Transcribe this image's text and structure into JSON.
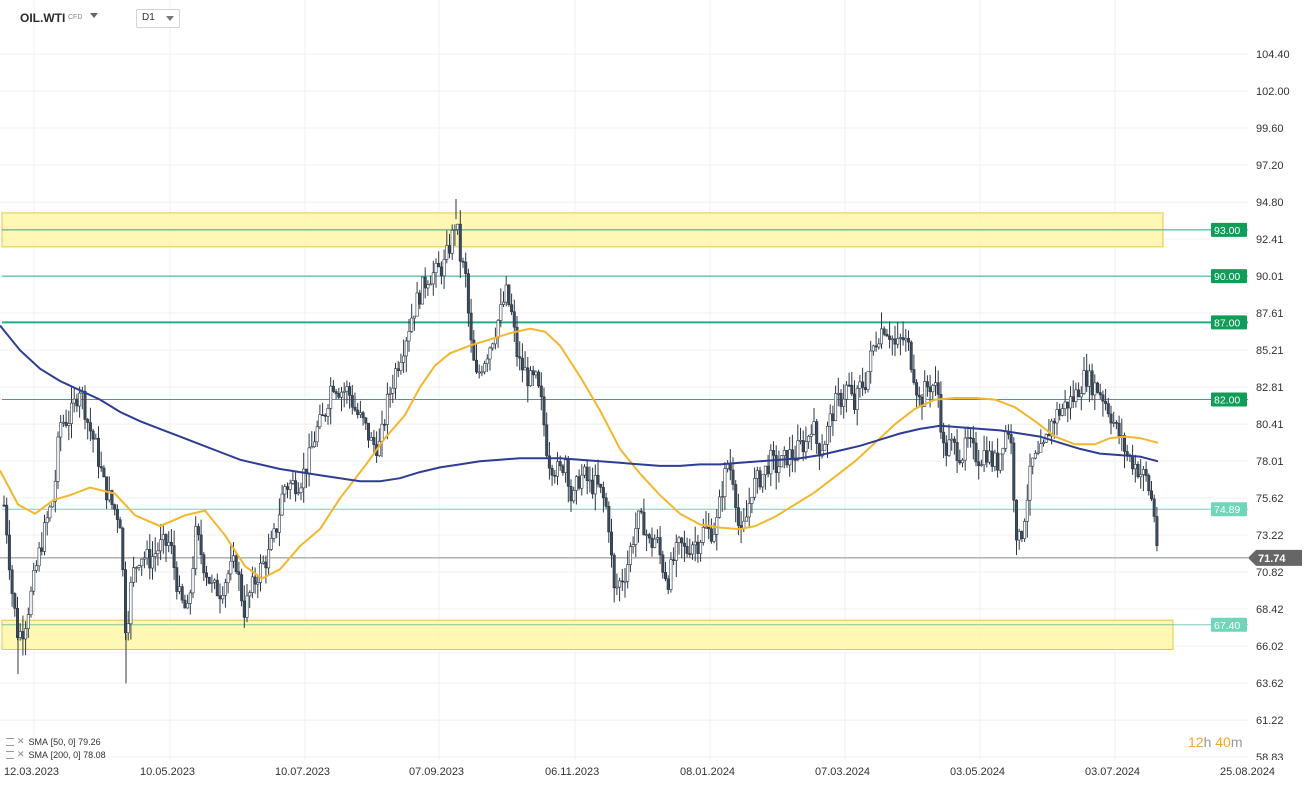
{
  "header": {
    "symbol": "OIL.WTI",
    "symbol_sub": "CFD",
    "timeframe": "D1"
  },
  "legend": [
    {
      "label": "SMA",
      "params": "[50, 0]",
      "value": "79.26"
    },
    {
      "label": "SMA",
      "params": "[200, 0]",
      "value": "78.08"
    }
  ],
  "timer": {
    "h": "12",
    "h_unit": "h",
    "m": "40",
    "m_unit": "m"
  },
  "colors": {
    "candle_up": "#ffffff",
    "candle_down": "#3d4a5a",
    "sma50": "#f2b72c",
    "sma200": "#2e3d94",
    "level_line": "#1fae8c",
    "level_tag_strong": "#0f9d58",
    "level_tag_weak": "#6fd6b9",
    "zone_fill": "#fff7a8",
    "zone_stroke": "#e5c84a",
    "price_tag": "#666666"
  },
  "chart_data": {
    "type": "candlestick",
    "instrument": "OIL.WTI",
    "timeframe": "D1",
    "ylim": [
      58.83,
      106.8
    ],
    "y_ticks": [
      "104.40",
      "102.00",
      "99.60",
      "97.20",
      "94.80",
      "92.41",
      "90.01",
      "87.61",
      "85.21",
      "82.81",
      "80.41",
      "78.01",
      "75.62",
      "73.22",
      "70.82",
      "68.42",
      "66.02",
      "63.62",
      "61.22",
      "58.83"
    ],
    "x_ticks": [
      "12.03.2023",
      "10.05.2023",
      "10.07.2023",
      "07.09.2023",
      "06.11.2023",
      "08.01.2024",
      "07.03.2024",
      "03.05.2024",
      "03.07.2024",
      "25.08.2024"
    ],
    "current_price": "71.74",
    "levels": [
      {
        "label": "93.00",
        "value": 93.0,
        "style": "strong"
      },
      {
        "label": "90.00",
        "value": 90.0,
        "style": "strong"
      },
      {
        "label": "87.00",
        "value": 87.0,
        "style": "strong"
      },
      {
        "label": "82.00",
        "value": 82.0,
        "style": "strong"
      },
      {
        "label": "74.89",
        "value": 74.89,
        "style": "weak"
      },
      {
        "label": "67.40",
        "value": 67.4,
        "style": "weak"
      }
    ],
    "zones": [
      {
        "from": 91.9,
        "to": 94.1
      },
      {
        "from": 65.8,
        "to": 67.7
      }
    ],
    "sma50_path": [
      [
        0,
        77.4
      ],
      [
        18,
        75.2
      ],
      [
        35,
        74.6
      ],
      [
        54,
        75.5
      ],
      [
        70,
        75.8
      ],
      [
        90,
        76.3
      ],
      [
        115,
        75.9
      ],
      [
        135,
        74.5
      ],
      [
        160,
        73.8
      ],
      [
        185,
        74.5
      ],
      [
        205,
        74.8
      ],
      [
        225,
        73.2
      ],
      [
        245,
        71.2
      ],
      [
        262,
        70.4
      ],
      [
        280,
        71.0
      ],
      [
        300,
        72.5
      ],
      [
        320,
        73.6
      ],
      [
        340,
        75.6
      ],
      [
        365,
        77.7
      ],
      [
        385,
        79.5
      ],
      [
        405,
        81.0
      ],
      [
        420,
        82.8
      ],
      [
        435,
        84.2
      ],
      [
        450,
        85.0
      ],
      [
        470,
        85.5
      ],
      [
        490,
        85.9
      ],
      [
        510,
        86.3
      ],
      [
        530,
        86.6
      ],
      [
        545,
        86.4
      ],
      [
        560,
        85.5
      ],
      [
        580,
        83.5
      ],
      [
        600,
        81.3
      ],
      [
        620,
        78.8
      ],
      [
        640,
        77.2
      ],
      [
        660,
        75.8
      ],
      [
        680,
        74.6
      ],
      [
        700,
        73.9
      ],
      [
        720,
        73.7
      ],
      [
        740,
        73.6
      ],
      [
        755,
        73.8
      ],
      [
        775,
        74.4
      ],
      [
        795,
        75.2
      ],
      [
        815,
        76.0
      ],
      [
        835,
        77.0
      ],
      [
        855,
        78.0
      ],
      [
        875,
        79.2
      ],
      [
        895,
        80.4
      ],
      [
        915,
        81.4
      ],
      [
        935,
        82.0
      ],
      [
        955,
        82.1
      ],
      [
        975,
        82.1
      ],
      [
        995,
        82.0
      ],
      [
        1015,
        81.5
      ],
      [
        1035,
        80.6
      ],
      [
        1055,
        79.6
      ],
      [
        1075,
        79.1
      ],
      [
        1095,
        79.1
      ],
      [
        1110,
        79.5
      ],
      [
        1125,
        79.6
      ],
      [
        1140,
        79.5
      ],
      [
        1158,
        79.2
      ]
    ],
    "sma200_path": [
      [
        0,
        86.8
      ],
      [
        20,
        85.2
      ],
      [
        40,
        84.0
      ],
      [
        60,
        83.2
      ],
      [
        80,
        82.6
      ],
      [
        100,
        82.0
      ],
      [
        120,
        81.2
      ],
      [
        140,
        80.6
      ],
      [
        160,
        80.1
      ],
      [
        180,
        79.6
      ],
      [
        200,
        79.1
      ],
      [
        220,
        78.6
      ],
      [
        240,
        78.1
      ],
      [
        260,
        77.8
      ],
      [
        280,
        77.5
      ],
      [
        300,
        77.3
      ],
      [
        320,
        77.1
      ],
      [
        340,
        76.9
      ],
      [
        360,
        76.7
      ],
      [
        380,
        76.7
      ],
      [
        400,
        76.9
      ],
      [
        420,
        77.3
      ],
      [
        440,
        77.6
      ],
      [
        460,
        77.8
      ],
      [
        480,
        78.0
      ],
      [
        500,
        78.1
      ],
      [
        520,
        78.2
      ],
      [
        540,
        78.2
      ],
      [
        560,
        78.2
      ],
      [
        580,
        78.1
      ],
      [
        600,
        78.0
      ],
      [
        620,
        77.9
      ],
      [
        640,
        77.8
      ],
      [
        660,
        77.7
      ],
      [
        680,
        77.7
      ],
      [
        700,
        77.8
      ],
      [
        720,
        77.8
      ],
      [
        740,
        77.9
      ],
      [
        760,
        78.0
      ],
      [
        780,
        78.1
      ],
      [
        800,
        78.2
      ],
      [
        820,
        78.4
      ],
      [
        840,
        78.7
      ],
      [
        860,
        79.0
      ],
      [
        880,
        79.4
      ],
      [
        900,
        79.8
      ],
      [
        920,
        80.1
      ],
      [
        940,
        80.3
      ],
      [
        960,
        80.2
      ],
      [
        980,
        80.1
      ],
      [
        1000,
        80.0
      ],
      [
        1020,
        79.8
      ],
      [
        1040,
        79.6
      ],
      [
        1060,
        79.2
      ],
      [
        1080,
        78.8
      ],
      [
        1100,
        78.5
      ],
      [
        1120,
        78.4
      ],
      [
        1140,
        78.3
      ],
      [
        1158,
        78.0
      ]
    ],
    "candles_ohlc_anchors": [
      [
        0,
        77.3
      ],
      [
        6,
        74.1
      ],
      [
        12,
        69.6
      ],
      [
        18,
        66.7
      ],
      [
        24,
        67.2
      ],
      [
        30,
        69.0
      ],
      [
        38,
        71.7
      ],
      [
        46,
        73.9
      ],
      [
        54,
        75.8
      ],
      [
        60,
        80.5
      ],
      [
        70,
        80.8
      ],
      [
        80,
        82.9
      ],
      [
        88,
        80.5
      ],
      [
        96,
        78.9
      ],
      [
        104,
        76.5
      ],
      [
        112,
        75.2
      ],
      [
        120,
        74.3
      ],
      [
        126,
        66.8
      ],
      [
        132,
        70.5
      ],
      [
        140,
        72.0
      ],
      [
        150,
        71.6
      ],
      [
        160,
        72.5
      ],
      [
        170,
        72.7
      ],
      [
        180,
        69.0
      ],
      [
        188,
        68.1
      ],
      [
        196,
        73.4
      ],
      [
        204,
        71.3
      ],
      [
        212,
        69.8
      ],
      [
        220,
        69.6
      ],
      [
        228,
        70.7
      ],
      [
        236,
        71.5
      ],
      [
        244,
        68.3
      ],
      [
        252,
        69.8
      ],
      [
        260,
        71.0
      ],
      [
        268,
        71.8
      ],
      [
        276,
        73.5
      ],
      [
        284,
        76.4
      ],
      [
        292,
        76.5
      ],
      [
        300,
        76.7
      ],
      [
        308,
        77.9
      ],
      [
        316,
        79.9
      ],
      [
        324,
        80.9
      ],
      [
        332,
        83.2
      ],
      [
        340,
        82.6
      ],
      [
        348,
        82.6
      ],
      [
        356,
        81.2
      ],
      [
        364,
        80.4
      ],
      [
        372,
        79.1
      ],
      [
        380,
        79.0
      ],
      [
        388,
        82.0
      ],
      [
        396,
        84.0
      ],
      [
        404,
        85.6
      ],
      [
        412,
        87.5
      ],
      [
        420,
        88.9
      ],
      [
        428,
        90.0
      ],
      [
        436,
        90.2
      ],
      [
        444,
        90.7
      ],
      [
        452,
        92.5
      ],
      [
        456,
        93.7
      ],
      [
        460,
        91.3
      ],
      [
        466,
        89.8
      ],
      [
        470,
        86.0
      ],
      [
        476,
        83.3
      ],
      [
        482,
        84.3
      ],
      [
        488,
        85.2
      ],
      [
        494,
        86.3
      ],
      [
        500,
        87.5
      ],
      [
        506,
        88.9
      ],
      [
        512,
        87.4
      ],
      [
        518,
        84.5
      ],
      [
        524,
        83.9
      ],
      [
        530,
        83.2
      ],
      [
        536,
        83.2
      ],
      [
        542,
        81.5
      ],
      [
        548,
        78.2
      ],
      [
        554,
        77.6
      ],
      [
        560,
        77.3
      ],
      [
        566,
        78.3
      ],
      [
        572,
        75.1
      ],
      [
        578,
        76.8
      ],
      [
        584,
        77.1
      ],
      [
        590,
        76.4
      ],
      [
        596,
        76.5
      ],
      [
        602,
        75.8
      ],
      [
        608,
        74.6
      ],
      [
        614,
        69.5
      ],
      [
        620,
        70.2
      ],
      [
        626,
        70.9
      ],
      [
        632,
        72.8
      ],
      [
        638,
        74.2
      ],
      [
        644,
        73.9
      ],
      [
        650,
        72.5
      ],
      [
        656,
        73.1
      ],
      [
        662,
        71.3
      ],
      [
        668,
        70.3
      ],
      [
        674,
        71.7
      ],
      [
        680,
        72.6
      ],
      [
        686,
        72.1
      ],
      [
        692,
        72.8
      ],
      [
        698,
        72.7
      ],
      [
        704,
        73.6
      ],
      [
        710,
        73.4
      ],
      [
        716,
        73.7
      ],
      [
        722,
        76.2
      ],
      [
        728,
        78.0
      ],
      [
        734,
        76.8
      ],
      [
        740,
        72.8
      ],
      [
        746,
        74.2
      ],
      [
        752,
        76.3
      ],
      [
        758,
        76.8
      ],
      [
        764,
        77.2
      ],
      [
        770,
        78.1
      ],
      [
        776,
        77.6
      ],
      [
        782,
        77.9
      ],
      [
        788,
        78.4
      ],
      [
        794,
        78.3
      ],
      [
        800,
        79.0
      ],
      [
        806,
        79.2
      ],
      [
        812,
        80.6
      ],
      [
        818,
        78.8
      ],
      [
        824,
        79.2
      ],
      [
        830,
        80.6
      ],
      [
        836,
        81.8
      ],
      [
        842,
        82.1
      ],
      [
        848,
        83.0
      ],
      [
        854,
        81.4
      ],
      [
        860,
        82.8
      ],
      [
        866,
        83.2
      ],
      [
        872,
        85.1
      ],
      [
        878,
        86.2
      ],
      [
        884,
        86.8
      ],
      [
        890,
        86.3
      ],
      [
        896,
        85.3
      ],
      [
        902,
        86.0
      ],
      [
        908,
        85.5
      ],
      [
        914,
        83.7
      ],
      [
        920,
        81.7
      ],
      [
        926,
        82.8
      ],
      [
        932,
        83.0
      ],
      [
        938,
        82.5
      ],
      [
        944,
        78.5
      ],
      [
        950,
        79.1
      ],
      [
        956,
        78.8
      ],
      [
        962,
        78.4
      ],
      [
        968,
        79.2
      ],
      [
        974,
        78.5
      ],
      [
        980,
        78.2
      ],
      [
        986,
        78.7
      ],
      [
        992,
        78.0
      ],
      [
        998,
        77.9
      ],
      [
        1004,
        79.8
      ],
      [
        1010,
        80.2
      ],
      [
        1016,
        73.6
      ],
      [
        1020,
        72.6
      ],
      [
        1026,
        75.2
      ],
      [
        1032,
        77.9
      ],
      [
        1038,
        78.2
      ],
      [
        1044,
        78.8
      ],
      [
        1050,
        80.3
      ],
      [
        1056,
        81.0
      ],
      [
        1062,
        81.4
      ],
      [
        1068,
        81.8
      ],
      [
        1074,
        82.1
      ],
      [
        1080,
        82.9
      ],
      [
        1086,
        83.6
      ],
      [
        1092,
        83.0
      ],
      [
        1098,
        82.7
      ],
      [
        1104,
        82.1
      ],
      [
        1110,
        81.2
      ],
      [
        1116,
        80.1
      ],
      [
        1122,
        79.2
      ],
      [
        1128,
        78.3
      ],
      [
        1134,
        77.9
      ],
      [
        1140,
        77.3
      ],
      [
        1146,
        76.9
      ],
      [
        1152,
        75.4
      ],
      [
        1155,
        74.3
      ],
      [
        1158,
        71.74
      ]
    ]
  }
}
